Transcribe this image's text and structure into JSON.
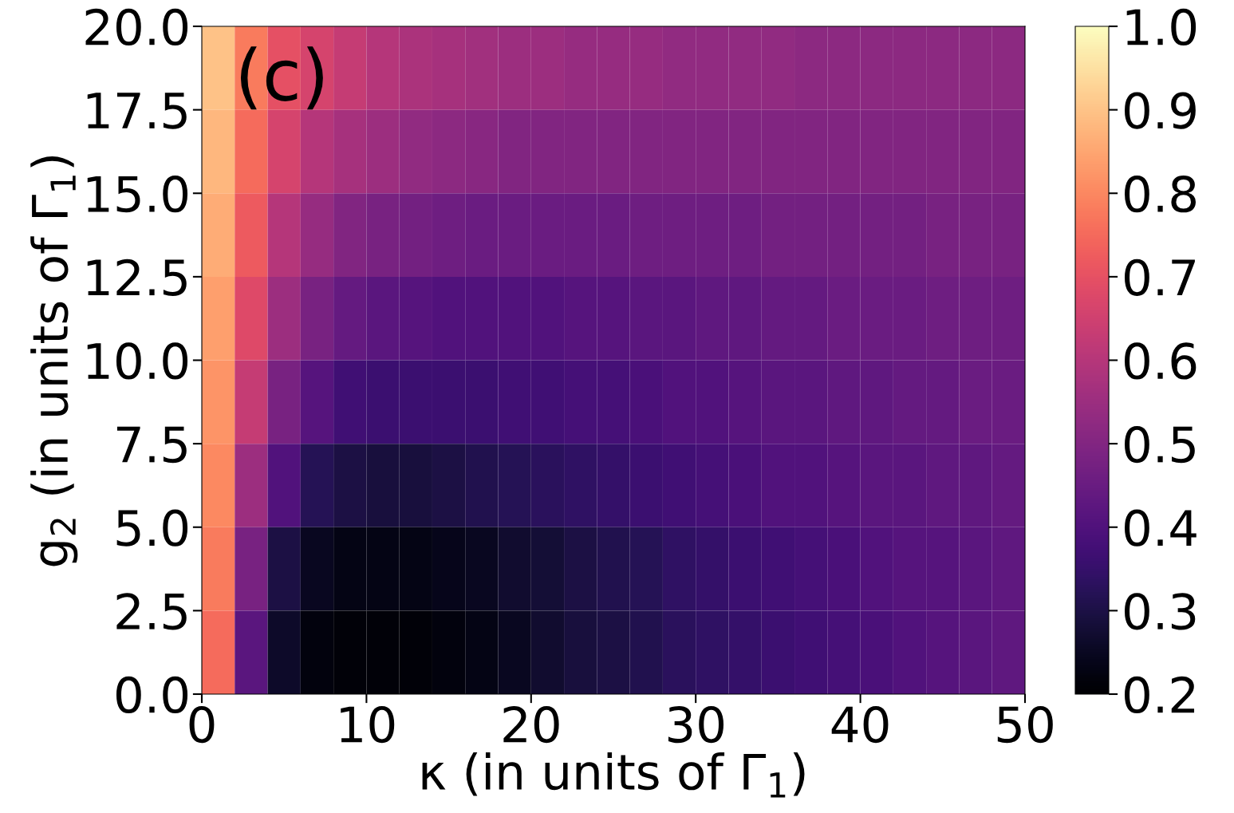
{
  "chart_data": {
    "type": "heatmap",
    "xlabel": "κ (in units of Γ$_{1}$)",
    "ylabel": "g$_{2}$ (in units of Γ$_{1}$)",
    "annotations": [
      "(c)"
    ],
    "xlim": [
      0,
      50
    ],
    "ylim": [
      0,
      20
    ],
    "xticks": [
      0,
      10,
      20,
      30,
      40,
      50
    ],
    "yticks": [
      {
        "value": 0,
        "label": "0.0"
      },
      {
        "value": 2.5,
        "label": "2.5"
      },
      {
        "value": 5,
        "label": "5.0"
      },
      {
        "value": 7.5,
        "label": "7.5"
      },
      {
        "value": 10,
        "label": "10.0"
      },
      {
        "value": 12.5,
        "label": "12.5"
      },
      {
        "value": 15,
        "label": "15.0"
      },
      {
        "value": 17.5,
        "label": "17.5"
      },
      {
        "value": 20,
        "label": "20.0"
      }
    ],
    "clim": [
      0.2,
      1.0
    ],
    "cticks": [
      {
        "value": 0.2,
        "label": "0.2"
      },
      {
        "value": 0.3,
        "label": "0.3"
      },
      {
        "value": 0.4,
        "label": "0.4"
      },
      {
        "value": 0.5,
        "label": "0.5"
      },
      {
        "value": 0.6,
        "label": "0.6"
      },
      {
        "value": 0.7,
        "label": "0.7"
      },
      {
        "value": 0.8,
        "label": "0.8"
      },
      {
        "value": 0.9,
        "label": "0.9"
      },
      {
        "value": 1.0,
        "label": "1.0"
      }
    ],
    "cells": [
      [
        0.9,
        0.78,
        0.7,
        0.66,
        0.63,
        0.6,
        0.58,
        0.57,
        0.56,
        0.55,
        0.55,
        0.54,
        0.54,
        0.54,
        0.53,
        0.53,
        0.53,
        0.53,
        0.52,
        0.52,
        0.52,
        0.52,
        0.52,
        0.52,
        0.52
      ],
      [
        0.88,
        0.75,
        0.66,
        0.6,
        0.57,
        0.55,
        0.53,
        0.52,
        0.51,
        0.5,
        0.5,
        0.5,
        0.5,
        0.5,
        0.5,
        0.5,
        0.5,
        0.5,
        0.5,
        0.5,
        0.5,
        0.5,
        0.5,
        0.5,
        0.5
      ],
      [
        0.86,
        0.72,
        0.6,
        0.54,
        0.5,
        0.48,
        0.47,
        0.46,
        0.45,
        0.45,
        0.45,
        0.45,
        0.45,
        0.46,
        0.46,
        0.46,
        0.46,
        0.47,
        0.47,
        0.47,
        0.47,
        0.47,
        0.48,
        0.48,
        0.48
      ],
      [
        0.84,
        0.68,
        0.55,
        0.48,
        0.44,
        0.42,
        0.41,
        0.4,
        0.4,
        0.4,
        0.4,
        0.41,
        0.41,
        0.42,
        0.42,
        0.43,
        0.43,
        0.44,
        0.44,
        0.45,
        0.45,
        0.45,
        0.46,
        0.46,
        0.46
      ],
      [
        0.82,
        0.63,
        0.48,
        0.41,
        0.37,
        0.36,
        0.36,
        0.36,
        0.36,
        0.37,
        0.37,
        0.38,
        0.38,
        0.39,
        0.4,
        0.4,
        0.41,
        0.42,
        0.42,
        0.43,
        0.43,
        0.44,
        0.44,
        0.45,
        0.45
      ],
      [
        0.8,
        0.55,
        0.4,
        0.32,
        0.3,
        0.29,
        0.29,
        0.3,
        0.31,
        0.32,
        0.33,
        0.34,
        0.35,
        0.36,
        0.37,
        0.38,
        0.39,
        0.4,
        0.4,
        0.41,
        0.42,
        0.42,
        0.43,
        0.43,
        0.44
      ],
      [
        0.78,
        0.48,
        0.3,
        0.25,
        0.23,
        0.23,
        0.23,
        0.24,
        0.25,
        0.27,
        0.28,
        0.3,
        0.31,
        0.32,
        0.34,
        0.35,
        0.36,
        0.37,
        0.38,
        0.39,
        0.4,
        0.41,
        0.41,
        0.42,
        0.43
      ],
      [
        0.75,
        0.42,
        0.26,
        0.22,
        0.21,
        0.21,
        0.21,
        0.22,
        0.23,
        0.25,
        0.27,
        0.29,
        0.3,
        0.31,
        0.33,
        0.34,
        0.35,
        0.36,
        0.37,
        0.38,
        0.39,
        0.4,
        0.41,
        0.42,
        0.43
      ]
    ]
  }
}
